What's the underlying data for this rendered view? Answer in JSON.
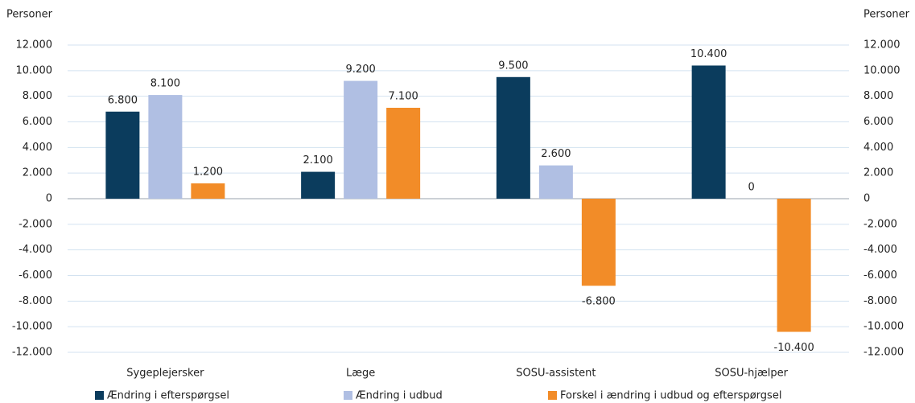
{
  "chart_data": {
    "type": "bar",
    "y_label": "Personer",
    "y2_label": "Personer",
    "categories": [
      "Sygeplejersker",
      "Læge",
      "SOSU-assistent",
      "SOSU-hjælper"
    ],
    "series": [
      {
        "name": "Ændring i efterspørgsel",
        "color": "#0b3c5d",
        "values": [
          6800,
          2100,
          9500,
          10400
        ],
        "value_labels": [
          "6.800",
          "2.100",
          "9.500",
          "10.400"
        ]
      },
      {
        "name": "Ændring i udbud",
        "color": "#b0bfe3",
        "values": [
          8100,
          9200,
          2600,
          0
        ],
        "value_labels": [
          "8.100",
          "9.200",
          "2.600",
          "0"
        ]
      },
      {
        "name": "Forskel i ændring i udbud og efterspørgsel",
        "color": "#f28c28",
        "values": [
          1200,
          7100,
          -6800,
          -10400
        ],
        "value_labels": [
          "1.200",
          "7.100",
          "-6.800",
          "-10.400"
        ]
      }
    ],
    "ylim": [
      -12000,
      12000
    ],
    "yticks": [
      {
        "value": -12000,
        "label": "-12.000"
      },
      {
        "value": -10000,
        "label": "-10.000"
      },
      {
        "value": -8000,
        "label": "-8.000"
      },
      {
        "value": -6000,
        "label": "-6.000"
      },
      {
        "value": -4000,
        "label": "-4.000"
      },
      {
        "value": -2000,
        "label": "-2.000"
      },
      0,
      {
        "value": 2000,
        "label": "2.000"
      },
      {
        "value": 4000,
        "label": "4.000"
      },
      {
        "value": 6000,
        "label": "6.000"
      },
      {
        "value": 8000,
        "label": "8.000"
      },
      {
        "value": 10000,
        "label": "10.000"
      },
      {
        "value": 12000,
        "label": "12.000"
      }
    ],
    "y2lim": [
      -12000,
      12000
    ],
    "y2ticks": [
      {
        "value": -12000,
        "label": "-12.000"
      },
      {
        "value": -10000,
        "label": "-10.000"
      },
      {
        "value": -8000,
        "label": "-8.000"
      },
      {
        "value": -6000,
        "label": "-6.000"
      },
      {
        "value": -4000,
        "label": "-4.000"
      },
      {
        "value": -2000,
        "label": "-2.000"
      },
      0,
      {
        "value": 2000,
        "label": "2.000"
      },
      {
        "value": 4000,
        "label": "4.000"
      },
      {
        "value": 6000,
        "label": "6.000"
      },
      {
        "value": 8000,
        "label": "8.000"
      },
      {
        "value": 10000,
        "label": "10.000"
      },
      {
        "value": 12000,
        "label": "12.000"
      }
    ],
    "grid": true,
    "legend": "bottom"
  }
}
